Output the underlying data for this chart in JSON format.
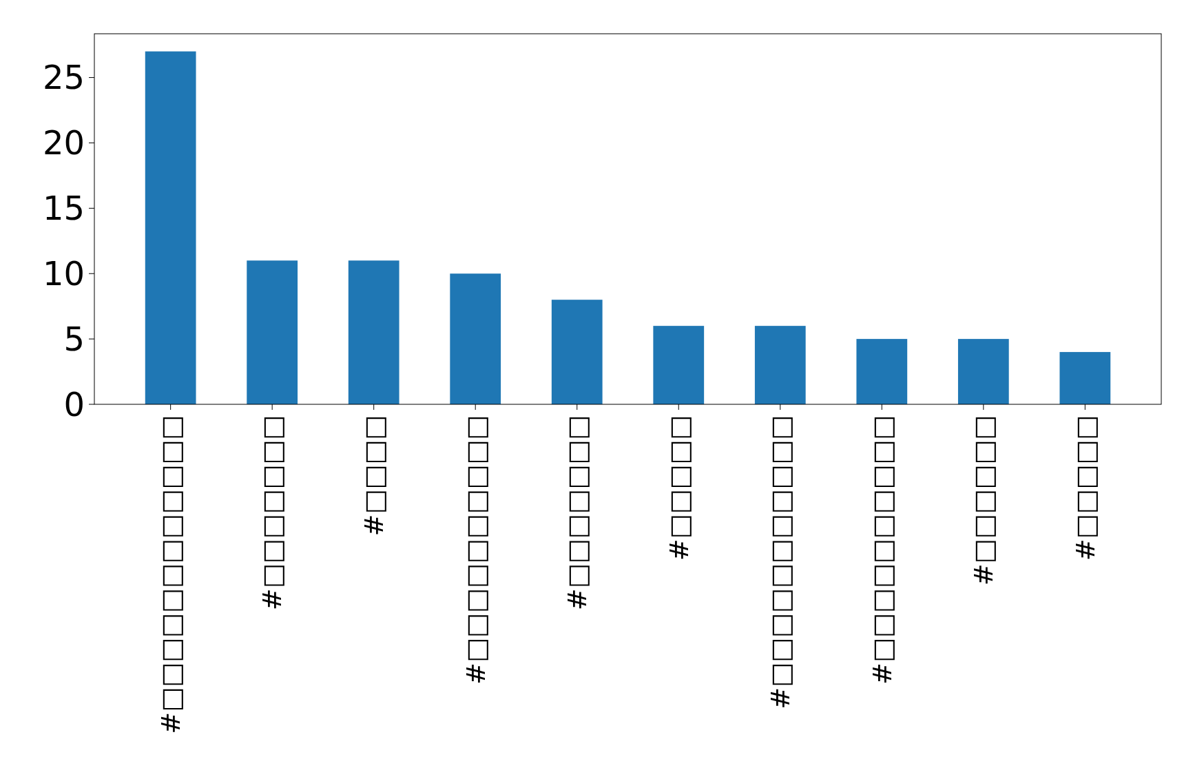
{
  "chart_data": {
    "type": "bar",
    "categories": [
      "#□□□□□□□□□□□□",
      "#□□□□□□□",
      "#□□□□",
      "#□□□□□□□□□□",
      "#□□□□□□□",
      "#□□□□□",
      "#□□□□□□□□□□□",
      "#□□□□□□□□□□",
      "#□□□□□□",
      "#□□□□□"
    ],
    "values": [
      27,
      11,
      11,
      10,
      8,
      6,
      6,
      5,
      5,
      4
    ],
    "color": "#1f77b4",
    "ylim": [
      0,
      28.35
    ],
    "yticks": [
      0,
      5,
      10,
      15,
      20,
      25
    ],
    "grid": false
  }
}
